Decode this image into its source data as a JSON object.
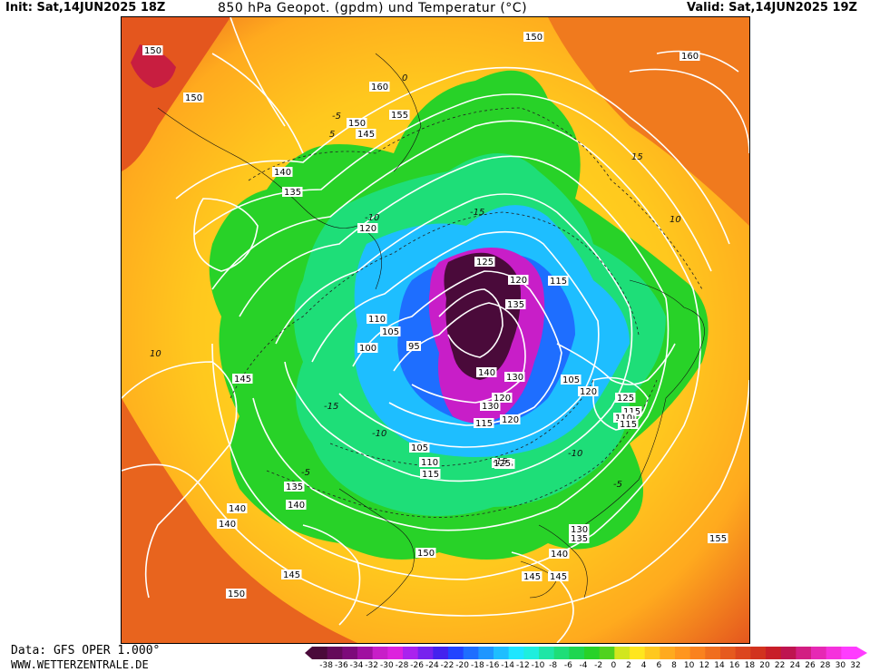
{
  "header": {
    "init": "Init: Sat,14JUN2025 18Z",
    "title": "850 hPa Geopot. (gpdm) und Temperatur (°C)",
    "valid": "Valid: Sat,14JUN2025 19Z"
  },
  "footer": {
    "data_source": "Data: GFS OPER 1.000°",
    "website": "WWW.WETTERZENTRALE.DE"
  },
  "legend": {
    "ticks": [
      "-38",
      "-36",
      "-34",
      "-32",
      "-30",
      "-28",
      "-26",
      "-24",
      "-22",
      "-20",
      "-18",
      "-16",
      "-14",
      "-12",
      "-10",
      "-8",
      "-6",
      "-4",
      "-2",
      "0",
      "2",
      "4",
      "6",
      "8",
      "10",
      "12",
      "14",
      "16",
      "18",
      "20",
      "22",
      "24",
      "26",
      "28",
      "30",
      "32"
    ],
    "colors": [
      "#4a0a3a",
      "#650a5a",
      "#7d0a7a",
      "#a010a0",
      "#c81ec8",
      "#dd22dd",
      "#aa22ee",
      "#7722ee",
      "#4422ee",
      "#2244ff",
      "#1e6eff",
      "#1e96ff",
      "#1ebeff",
      "#1ee6ff",
      "#1eeede",
      "#1ee6a6",
      "#1ede78",
      "#1ed650",
      "#28d228",
      "#50d21e",
      "#d2e61e",
      "#ffe61e",
      "#ffc81e",
      "#ffaa1e",
      "#ff961e",
      "#fa821e",
      "#f06e1e",
      "#e65a1e",
      "#dc461e",
      "#d2321e",
      "#c81e28",
      "#be1450",
      "#d21e82",
      "#e628b4",
      "#f532dc",
      "#ff3cff"
    ]
  },
  "map": {
    "geopotential_labels": [
      "150",
      "145",
      "140",
      "135",
      "130",
      "125",
      "120",
      "115",
      "110",
      "105",
      "100",
      "95",
      "160",
      "155"
    ],
    "temperature_labels": [
      "-15",
      "-10",
      "-5",
      "0",
      "5",
      "10",
      "15"
    ],
    "labels": [
      {
        "t": "150",
        "k": "g"
      },
      {
        "t": "150",
        "k": "g"
      },
      {
        "t": "160",
        "k": "g"
      },
      {
        "t": "155",
        "k": "g"
      },
      {
        "t": "150",
        "k": "g"
      },
      {
        "t": "145",
        "k": "g"
      },
      {
        "t": "140",
        "k": "g"
      },
      {
        "t": "135",
        "k": "g"
      },
      {
        "t": "120",
        "k": "g"
      },
      {
        "t": "110",
        "k": "g"
      },
      {
        "t": "105",
        "k": "g"
      },
      {
        "t": "100",
        "k": "g"
      },
      {
        "t": "95",
        "k": "g"
      },
      {
        "t": "145",
        "k": "g"
      },
      {
        "t": "150",
        "k": "g"
      },
      {
        "t": "145",
        "k": "g"
      },
      {
        "t": "140",
        "k": "g"
      },
      {
        "t": "135",
        "k": "g"
      },
      {
        "t": "130",
        "k": "g"
      },
      {
        "t": "125",
        "k": "g"
      },
      {
        "t": "120",
        "k": "g"
      },
      {
        "t": "115",
        "k": "g"
      },
      {
        "t": "110",
        "k": "g"
      },
      {
        "t": "160",
        "k": "g"
      },
      {
        "t": "125",
        "k": "g"
      },
      {
        "t": "120",
        "k": "g"
      },
      {
        "t": "135",
        "k": "g"
      },
      {
        "t": "115",
        "k": "g"
      },
      {
        "t": "140",
        "k": "g"
      },
      {
        "t": "130",
        "k": "g"
      },
      {
        "t": "120",
        "k": "g"
      },
      {
        "t": "115",
        "k": "g"
      },
      {
        "t": "105",
        "k": "g"
      },
      {
        "t": "120",
        "k": "g"
      },
      {
        "t": "125",
        "k": "g"
      },
      {
        "t": "110",
        "k": "g"
      },
      {
        "t": "115",
        "k": "g"
      },
      {
        "t": "105",
        "k": "g"
      },
      {
        "t": "110",
        "k": "g"
      },
      {
        "t": "115",
        "k": "g"
      },
      {
        "t": "125",
        "k": "g"
      },
      {
        "t": "140",
        "k": "g"
      },
      {
        "t": "140",
        "k": "g"
      },
      {
        "t": "145",
        "k": "g"
      },
      {
        "t": "150",
        "k": "g"
      },
      {
        "t": "150",
        "k": "g"
      },
      {
        "t": "140",
        "k": "g"
      },
      {
        "t": "145",
        "k": "g"
      },
      {
        "t": "130",
        "k": "g"
      },
      {
        "t": "135",
        "k": "g"
      },
      {
        "t": "155",
        "k": "g"
      },
      {
        "t": "-15",
        "k": "t"
      },
      {
        "t": "-10",
        "k": "t"
      },
      {
        "t": "-5",
        "k": "t"
      },
      {
        "t": "0",
        "k": "t"
      },
      {
        "t": "5",
        "k": "t"
      },
      {
        "t": "10",
        "k": "t"
      },
      {
        "t": "15",
        "k": "t"
      },
      {
        "t": "-15",
        "k": "t"
      },
      {
        "t": "-10",
        "k": "t"
      },
      {
        "t": "-5",
        "k": "t"
      },
      {
        "t": "10",
        "k": "t"
      },
      {
        "t": "-5",
        "k": "t"
      },
      {
        "t": "-10",
        "k": "t"
      },
      {
        "t": "-15",
        "k": "t"
      }
    ]
  }
}
